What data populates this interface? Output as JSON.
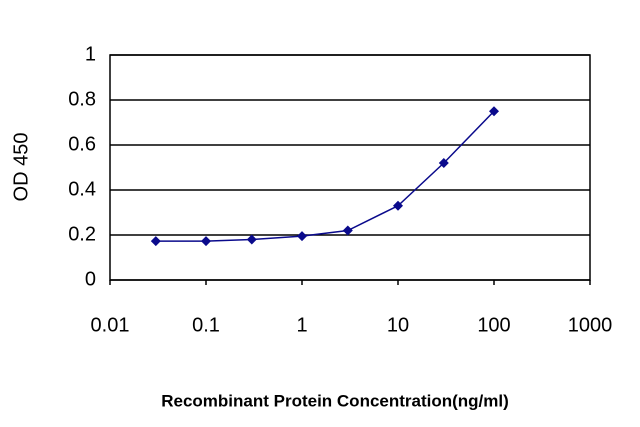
{
  "chart_data": {
    "type": "line",
    "x_label": "Recombinant Protein Concentration(ng/ml)",
    "y_label": "OD 450",
    "x": [
      0.03,
      0.1,
      0.3,
      1,
      3,
      10,
      30,
      100
    ],
    "values": [
      0.173,
      0.173,
      0.18,
      0.195,
      0.22,
      0.33,
      0.52,
      0.75
    ],
    "color": "#0a0a8c",
    "xscale": "log",
    "xlim": [
      0.01,
      1000
    ],
    "xticks": [
      0.01,
      0.1,
      1,
      10,
      100,
      1000
    ],
    "ylim": [
      0,
      1
    ],
    "yticks": [
      0,
      0.2,
      0.4,
      0.6,
      0.8,
      1
    ],
    "grid": true
  }
}
